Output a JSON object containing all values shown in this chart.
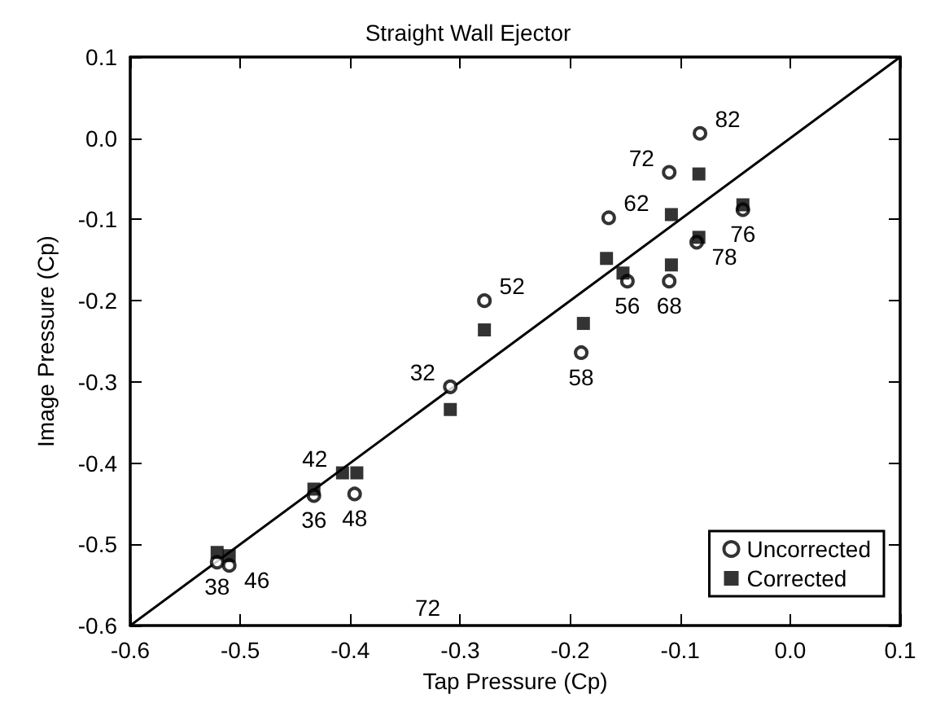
{
  "chart_data": {
    "type": "scatter",
    "title": "Straight Wall Ejector",
    "xlabel": "Tap Pressure (Cp)",
    "ylabel": "Image Pressure (Cp)",
    "xlim": [
      -0.6,
      0.1
    ],
    "ylim": [
      -0.6,
      0.1
    ],
    "xticks": [
      -0.6,
      -0.5,
      -0.4,
      -0.3,
      -0.2,
      -0.1,
      {
        "value": 0,
        "label": "0.0"
      },
      0.1
    ],
    "yticks": [
      -0.6,
      -0.5,
      -0.4,
      -0.3,
      -0.2,
      -0.1,
      {
        "value": 0,
        "label": "0.0"
      },
      0.1
    ],
    "grid": false,
    "legend": "bottom right",
    "series": [
      {
        "name": "Uncorrected",
        "color": "#000000",
        "marker": "circle",
        "x": [
          -0.082,
          -0.11,
          -0.165,
          -0.043,
          -0.085,
          -0.148,
          -0.11,
          -0.278,
          -0.309,
          -0.19,
          -0.433,
          -0.396,
          -0.521,
          -0.51
        ],
        "values": [
          0.006,
          -0.042,
          -0.098,
          -0.088,
          -0.128,
          -0.176,
          -0.176,
          -0.2,
          -0.306,
          -0.264,
          -0.44,
          -0.438,
          -0.522,
          -0.526
        ]
      },
      {
        "name": "Corrected",
        "color": "#000000",
        "marker": "square",
        "x": [
          -0.083,
          -0.108,
          -0.043,
          -0.083,
          -0.167,
          -0.152,
          -0.108,
          -0.278,
          -0.188,
          -0.309,
          -0.433,
          -0.407,
          -0.394,
          -0.521,
          -0.51
        ],
        "values": [
          -0.044,
          -0.094,
          -0.082,
          -0.122,
          -0.148,
          -0.166,
          -0.156,
          -0.236,
          -0.228,
          -0.334,
          -0.432,
          -0.412,
          -0.412,
          -0.51,
          -0.514
        ]
      },
      {
        "type": "line",
        "color": "#000000",
        "marker": "none",
        "x": [
          -0.6,
          0.1
        ],
        "values": [
          -0.6,
          0.1
        ]
      }
    ],
    "annotations": [
      {
        "text": "82",
        "x": -0.082,
        "y": 0.006
      },
      {
        "text": "72",
        "x": -0.11,
        "y": -0.042
      },
      {
        "text": "62",
        "x": -0.165,
        "y": -0.098
      },
      {
        "text": "76",
        "x": -0.043,
        "y": -0.088
      },
      {
        "text": "78",
        "x": -0.085,
        "y": -0.128
      },
      {
        "text": "56",
        "x": -0.148,
        "y": -0.176
      },
      {
        "text": "68",
        "x": -0.11,
        "y": -0.176
      },
      {
        "text": "52",
        "x": -0.278,
        "y": -0.2
      },
      {
        "text": "32",
        "x": -0.309,
        "y": -0.306
      },
      {
        "text": "58",
        "x": -0.19,
        "y": -0.264
      },
      {
        "text": "36",
        "x": -0.433,
        "y": -0.44
      },
      {
        "text": "42",
        "x": -0.407,
        "y": -0.412
      },
      {
        "text": "48",
        "x": -0.396,
        "y": -0.438
      },
      {
        "text": "38",
        "x": -0.521,
        "y": -0.522
      },
      {
        "text": "46",
        "x": -0.51,
        "y": -0.526
      },
      "72"
    ]
  }
}
